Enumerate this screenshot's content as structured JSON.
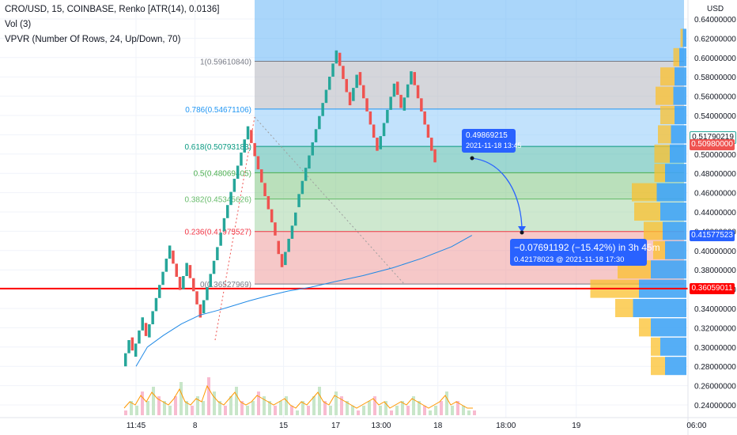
{
  "legend": {
    "symbol": "CRO/USD, 15, COINBASE, Renko [ATR(14), 0.0136]",
    "vol": "Vol (3)",
    "vpvr": "VPVR (Number Of Rows, 24, Up/Down, 70)"
  },
  "axis": {
    "currency": "USD",
    "y_ticks": [
      "0.64000000",
      "0.62000000",
      "0.60000000",
      "0.58000000",
      "0.56000000",
      "0.54000000",
      "0.52000000",
      "0.50000000",
      "0.48000000",
      "0.46000000",
      "0.44000000",
      "0.42000000",
      "0.40000000",
      "0.38000000",
      "0.36000000",
      "0.34000000",
      "0.32000000",
      "0.30000000",
      "0.28000000",
      "0.26000000",
      "0.24000000"
    ],
    "x_ticks": [
      {
        "label": "11:45",
        "x": 0
      },
      {
        "label": "8",
        "x": 2.6
      },
      {
        "label": "15",
        "x": 6.5
      },
      {
        "label": "17",
        "x": 8.8
      },
      {
        "label": "13:00",
        "x": 10.8
      },
      {
        "label": "18",
        "x": 13.3
      },
      {
        "label": "18:00",
        "x": 16.3
      },
      {
        "label": "19",
        "x": 19.4
      },
      {
        "label": "06:00",
        "x": 24.7
      }
    ]
  },
  "price_tags": [
    {
      "label": "0.51790219",
      "kind": "outline",
      "color": "#26a69a"
    },
    {
      "label": "0.50980000",
      "kind": "fill",
      "color": "#ef5350"
    },
    {
      "label": "0.41577523",
      "kind": "fill",
      "color": "#2962ff"
    },
    {
      "label": "0.36059011",
      "kind": "fill",
      "color": "#ff0000"
    }
  ],
  "fib": {
    "labels": [
      {
        "text": "1(0.59610840)",
        "color": "#787b86"
      },
      {
        "text": "0.786(0.54671106)",
        "color": "#2196f3"
      },
      {
        "text": "0.618(0.50793183)",
        "color": "#089981"
      },
      {
        "text": "0.5(0.48069405)",
        "color": "#4caf50"
      },
      {
        "text": "0.382(0.45345626)",
        "color": "#66bb6a"
      },
      {
        "text": "0.236(0.41975527)",
        "color": "#f23645"
      },
      {
        "text": "0(0.36527969)",
        "color": "#787b86"
      }
    ]
  },
  "annotation": {
    "point_price": "0.49869215",
    "point_time": "2021-11-18 13:45",
    "change": "−0.07691192 (−15.42%) in 3h 45m",
    "target": "0.42178023 @ 2021-11-18  17:30"
  },
  "chart_data": {
    "type": "candlestick",
    "title": "CRO/USD, 15, COINBASE, Renko [ATR(14), 0.0136]",
    "x_unit": "days from 11:45 tick (approx)",
    "ylim": [
      0.23,
      0.645
    ],
    "brick_size": 0.0136,
    "renko_turning_points": [
      0.28,
      0.31,
      0.29,
      0.325,
      0.31,
      0.4,
      0.36,
      0.385,
      0.335,
      0.39,
      0.405,
      0.42,
      0.525,
      0.47,
      0.41,
      0.385,
      0.445,
      0.485,
      0.605,
      0.555,
      0.585,
      0.505,
      0.575,
      0.545,
      0.585,
      0.505,
      0.485
    ],
    "last_price": 0.5098,
    "current_tag": 0.51790219,
    "horizontal_line": 0.36059011,
    "fib_retracement": [
      {
        "level": 1,
        "price": 0.5961084
      },
      {
        "level": 0.786,
        "price": 0.54671106
      },
      {
        "level": 0.618,
        "price": 0.50793183
      },
      {
        "level": 0.5,
        "price": 0.48069405
      },
      {
        "level": 0.382,
        "price": 0.45345626
      },
      {
        "level": 0.236,
        "price": 0.41975527
      },
      {
        "level": 0,
        "price": 0.36527969
      }
    ],
    "ma_line": {
      "x": [
        0,
        0.5,
        1.2,
        2,
        2.8,
        3.6,
        4.3,
        5,
        5.8,
        6.7,
        7.7,
        8.8,
        10,
        11.3,
        12.6,
        13.9,
        14.8
      ],
      "y": [
        0.28,
        0.3,
        0.312,
        0.324,
        0.333,
        0.338,
        0.343,
        0.348,
        0.353,
        0.358,
        0.362,
        0.368,
        0.374,
        0.382,
        0.392,
        0.404,
        0.41577523
      ]
    },
    "vpvr": {
      "price_levels": [
        0.62,
        0.6,
        0.58,
        0.56,
        0.54,
        0.52,
        0.5,
        0.48,
        0.46,
        0.44,
        0.42,
        0.4,
        0.38,
        0.36,
        0.34,
        0.32,
        0.3,
        0.28
      ],
      "up": [
        0.02,
        0.05,
        0.12,
        0.15,
        0.12,
        0.11,
        0.13,
        0.09,
        0.21,
        0.22,
        0.16,
        0.1,
        0.28,
        0.41,
        0.15,
        0.1,
        0.08,
        0.12
      ],
      "down": [
        0.03,
        0.06,
        0.1,
        0.11,
        0.1,
        0.13,
        0.14,
        0.18,
        0.25,
        0.22,
        0.2,
        0.18,
        0.3,
        0.4,
        0.45,
        0.3,
        0.22,
        0.18
      ]
    },
    "volume": [
      0.1,
      0.3,
      0.2,
      0.5,
      0.3,
      0.6,
      0.4,
      0.3,
      0.2,
      0.4,
      0.7,
      0.3,
      0.2,
      0.4,
      0.3,
      0.8,
      0.5,
      0.3,
      0.2,
      0.4,
      0.6,
      0.3,
      0.2,
      0.3,
      0.5,
      0.4,
      0.3,
      0.2,
      0.3,
      0.4,
      0.2,
      0.1,
      0.3,
      0.2,
      0.4,
      0.6,
      0.3,
      0.2,
      0.5,
      0.4,
      0.3,
      0.2,
      0.1,
      0.2,
      0.3,
      0.4,
      0.2,
      0.3,
      0.1,
      0.2,
      0.3,
      0.2,
      0.4,
      0.3,
      0.2,
      0.1,
      0.2,
      0.3,
      0.5,
      0.2,
      0.3,
      0.2,
      0.1,
      0.1
    ]
  }
}
